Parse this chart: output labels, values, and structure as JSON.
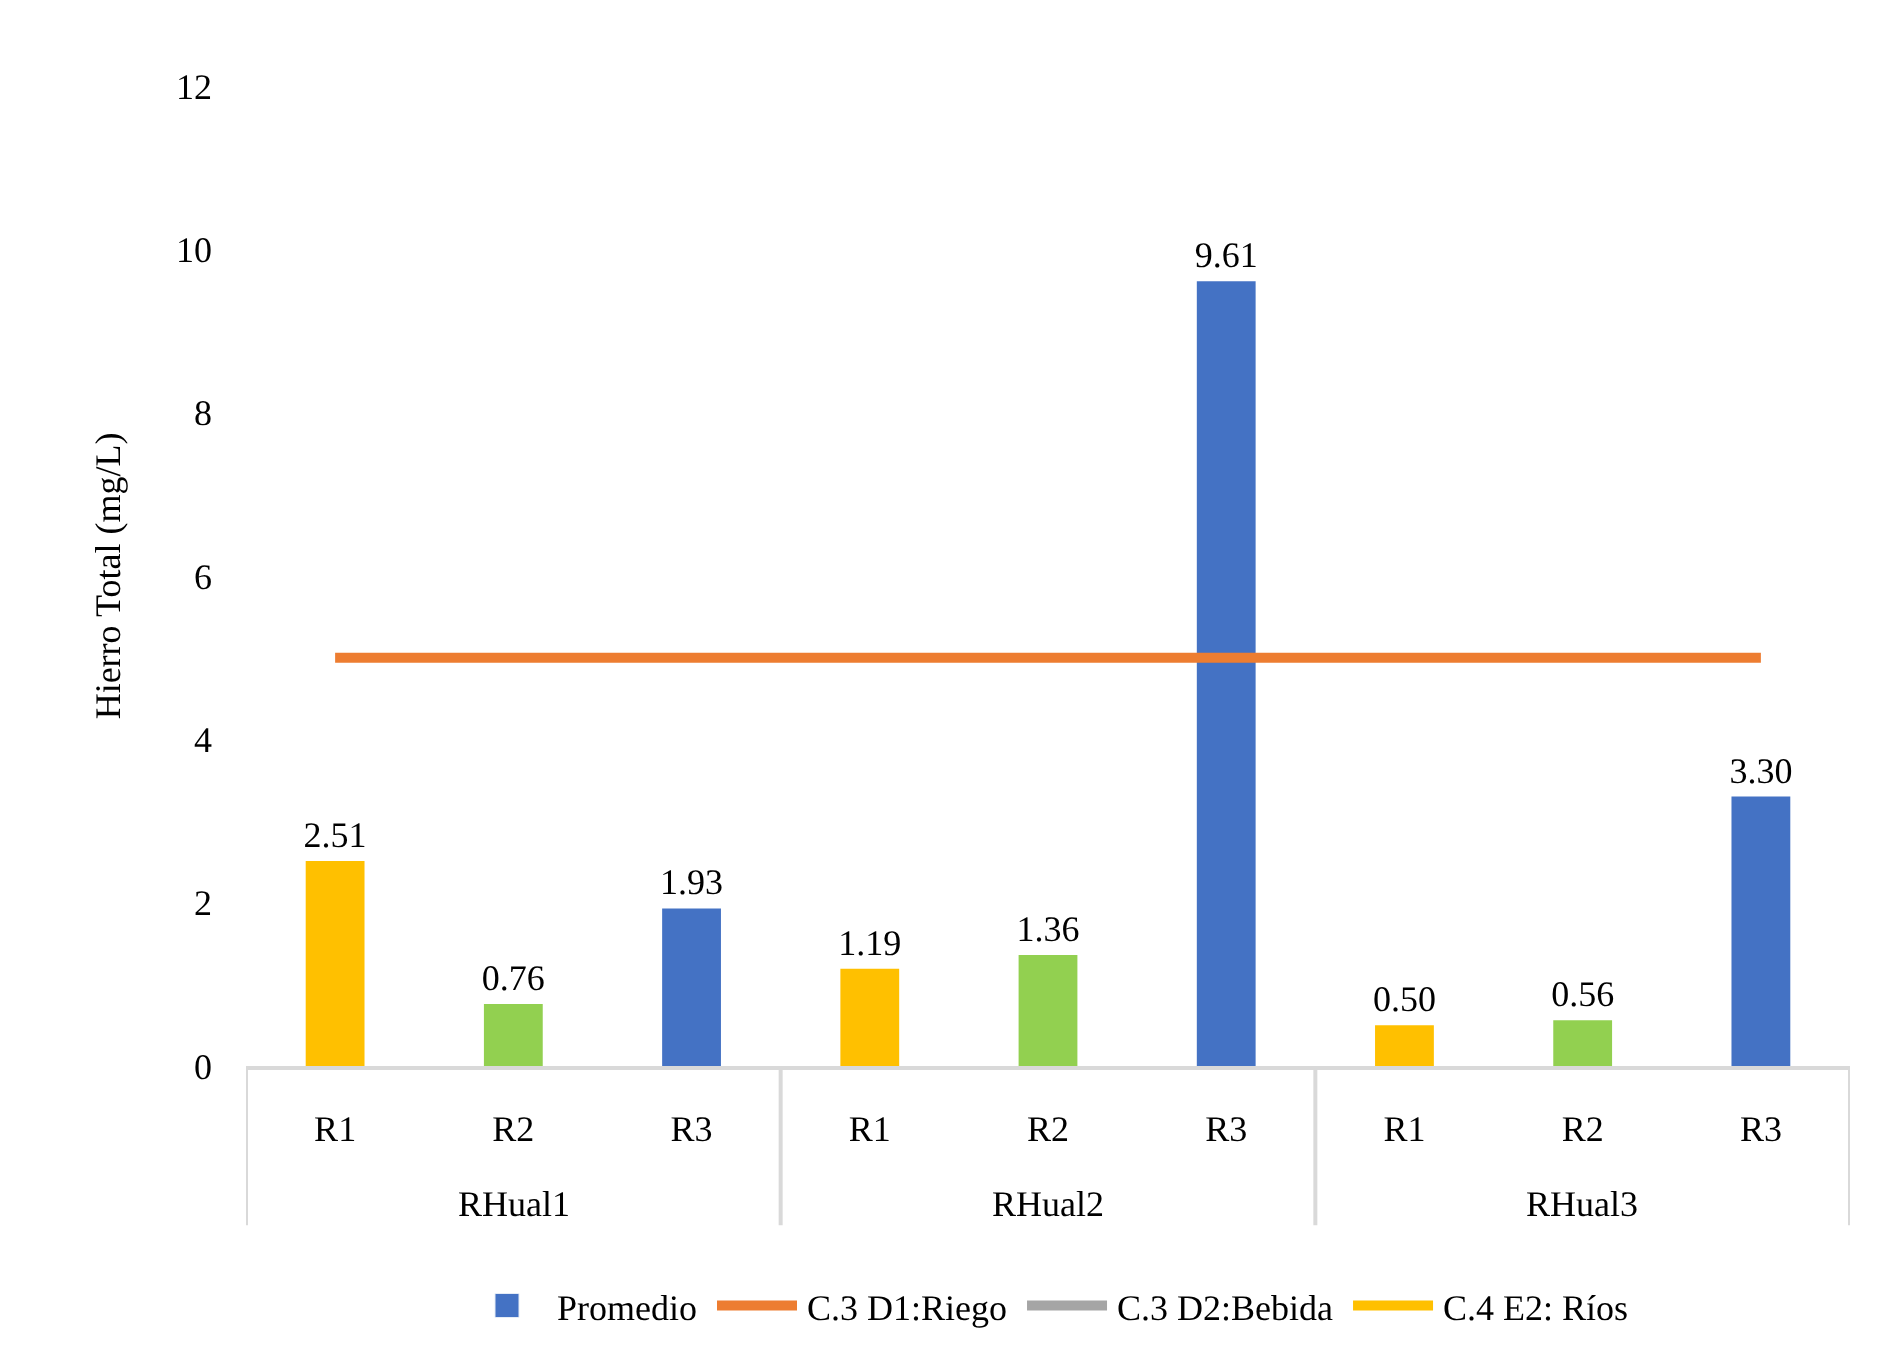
{
  "chart_data": {
    "type": "bar",
    "ylabel": "Hierro Total (mg/L)",
    "categories": [
      "R1",
      "R2",
      "R3",
      "R1",
      "R2",
      "R3",
      "R1",
      "R2",
      "R3"
    ],
    "annotations": [
      "RHual1",
      "RHual2",
      "RHual3"
    ],
    "series": [
      {
        "name": "Promedio",
        "color": "#4472c4",
        "colors": [
          "#ffc000",
          "#92d050",
          "#4472c4",
          "#ffc000",
          "#92d050",
          "#4472c4",
          "#ffc000",
          "#92d050",
          "#4472c4"
        ],
        "values": [
          2.51,
          0.76,
          1.93,
          1.19,
          1.36,
          9.61,
          0.5,
          0.56,
          3.3
        ],
        "value_labels": [
          "2.51",
          "0.76",
          "1.93",
          "1.19",
          "1.36",
          "9.61",
          "0.50",
          "0.56",
          "3.30"
        ]
      },
      {
        "name": "C.3 D1:Riego",
        "type": "line",
        "color": "#ed7d31",
        "values": [
          5,
          5,
          5,
          5,
          5,
          5,
          5,
          5,
          5
        ]
      },
      {
        "name": "C.3 D2:Bebida",
        "type": "line",
        "color": "#a5a5a5",
        "values": [
          null,
          null,
          null,
          null,
          null,
          null,
          null,
          null,
          null
        ]
      },
      {
        "name": "C.4 E2: Ríos",
        "type": "line",
        "color": "#ffc000",
        "values": [
          null,
          null,
          null,
          null,
          null,
          null,
          null,
          null,
          null
        ]
      }
    ],
    "ylim": [
      0,
      12
    ],
    "yticks": [
      0,
      2,
      4,
      6,
      8,
      10,
      12
    ],
    "legend": "bottom"
  }
}
